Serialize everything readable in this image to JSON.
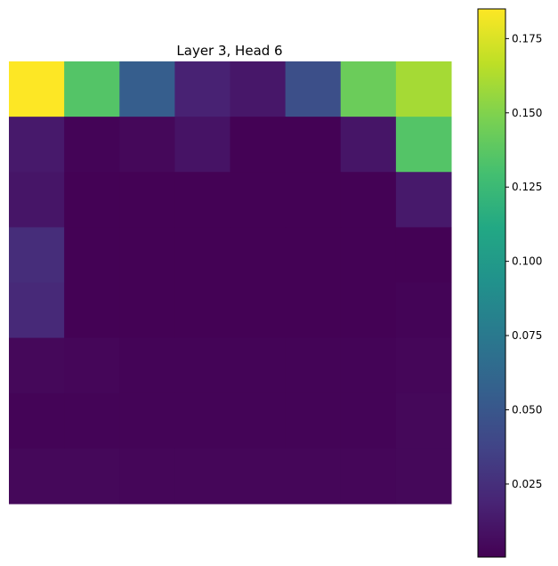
{
  "chart_data": {
    "type": "heatmap",
    "title": "Layer 3, Head 6",
    "rows": 8,
    "cols": 8,
    "colormap": "viridis",
    "vmin": 0.0004,
    "vmax": 0.185,
    "colorbar_ticks": [
      0.025,
      0.05,
      0.075,
      0.1,
      0.125,
      0.15,
      0.175
    ],
    "colorbar_tick_labels": [
      "0.025",
      "0.050",
      "0.075",
      "0.100",
      "0.125",
      "0.150",
      "0.175"
    ],
    "values": [
      [
        0.185,
        0.135,
        0.055,
        0.018,
        0.012,
        0.045,
        0.143,
        0.16
      ],
      [
        0.013,
        0.002,
        0.004,
        0.01,
        0.001,
        0.001,
        0.011,
        0.135
      ],
      [
        0.011,
        0.001,
        0.001,
        0.001,
        0.001,
        0.001,
        0.001,
        0.013
      ],
      [
        0.024,
        0.001,
        0.001,
        0.001,
        0.001,
        0.001,
        0.001,
        0.001
      ],
      [
        0.022,
        0.001,
        0.001,
        0.001,
        0.001,
        0.001,
        0.001,
        0.002
      ],
      [
        0.004,
        0.003,
        0.002,
        0.002,
        0.002,
        0.002,
        0.002,
        0.003
      ],
      [
        0.002,
        0.002,
        0.002,
        0.002,
        0.002,
        0.002,
        0.002,
        0.004
      ],
      [
        0.004,
        0.004,
        0.003,
        0.003,
        0.003,
        0.003,
        0.003,
        0.004
      ]
    ]
  }
}
